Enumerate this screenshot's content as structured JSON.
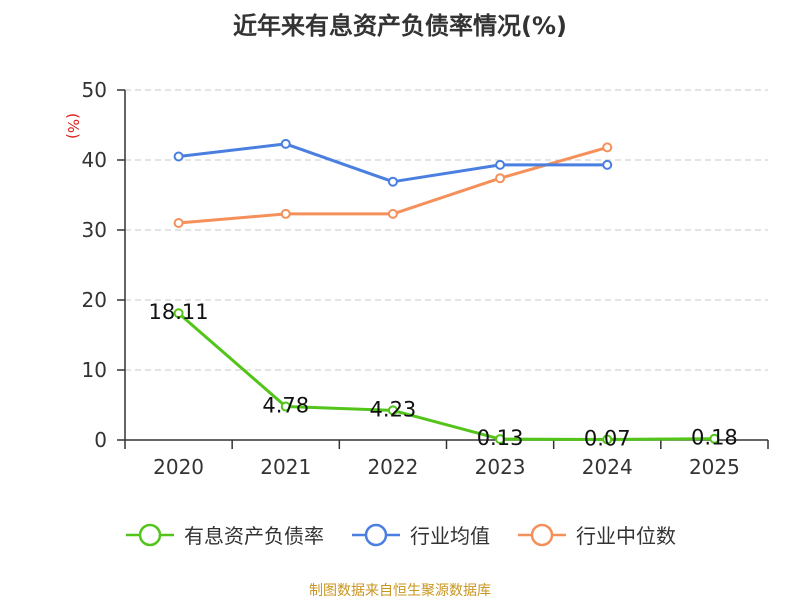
{
  "chart_data": {
    "type": "line",
    "title": "近年来有息资产负债率情况(%)",
    "ylabel": "(%)",
    "xlabel": "",
    "categories": [
      "2020",
      "2021",
      "2022",
      "2023",
      "2024",
      "2025"
    ],
    "ylim": [
      0,
      50
    ],
    "yticks": [
      0,
      10,
      20,
      30,
      40,
      50
    ],
    "grid": true,
    "legend_position": "bottom",
    "series": [
      {
        "name": "有息资产负债率",
        "color": "#52c41a",
        "values": [
          18.11,
          4.78,
          4.23,
          0.13,
          0.07,
          0.18
        ],
        "labels": [
          "18.11",
          "4.78",
          "4.23",
          "0.13",
          "0.07",
          "0.18"
        ]
      },
      {
        "name": "行业均值",
        "color": "#4a7fe0",
        "values": [
          40.5,
          42.3,
          36.9,
          39.3,
          39.3,
          null
        ]
      },
      {
        "name": "行业中位数",
        "color": "#f5905a",
        "values": [
          31.0,
          32.3,
          32.3,
          37.4,
          41.8,
          null
        ]
      }
    ],
    "source": "制图数据来自恒生聚源数据库"
  }
}
